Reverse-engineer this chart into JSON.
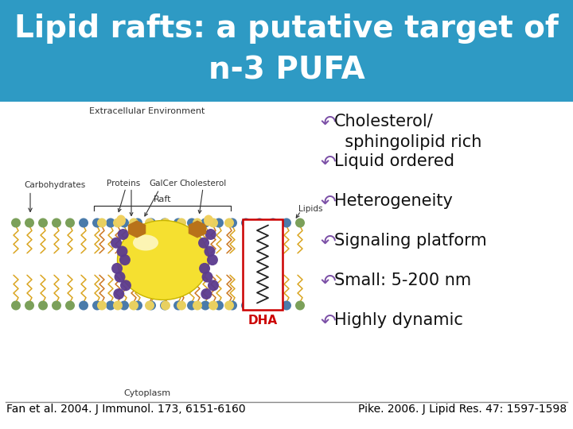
{
  "title_line1": "Lipid rafts: a putative target of",
  "title_line2": "n-3 PUFA",
  "title_bg_color": "#2E9AC4",
  "title_text_color": "#FFFFFF",
  "title_fontsize": 28,
  "title_fontweight": "bold",
  "bg_color": "#FFFFFF",
  "bullets": [
    "Cholesterol/\n  sphingolipid rich",
    "Liquid ordered",
    "Heterogeneity",
    "Signaling platform",
    "Small: 5-200 nm",
    "Highly dynamic"
  ],
  "bullet_color": "#7B4FA6",
  "bullet_fontsize": 15,
  "footer_left": "Fan et al. 2004. J Immunol. 173, 6151-6160",
  "footer_right": "Pike. 2006. J Lipid Res. 47: 1597-1598",
  "footer_fontsize": 10,
  "footer_color": "#000000",
  "separator_color": "#888888",
  "head_color_green": "#7BA05A",
  "head_color_blue": "#4A7BAA",
  "tail_color_yellow": "#DAA520",
  "tail_color_orange": "#CC7722",
  "raft_color": "#F5E030",
  "raft_edge": "#C8B400",
  "protein_purple": "#5B3A8E",
  "hexagon_brown": "#B8721A",
  "dha_box_color": "#CC0000",
  "dha_label_color": "#CC0000",
  "label_color": "#333333",
  "label_fontsize": 8,
  "dha_fontsize": 11
}
